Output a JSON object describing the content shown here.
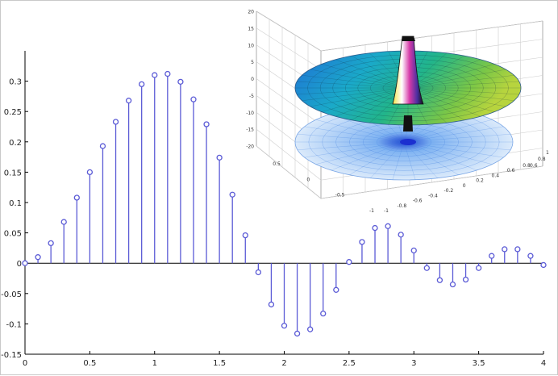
{
  "chart_data": [
    {
      "type": "stem",
      "x": [
        0,
        0.1,
        0.2,
        0.3,
        0.4,
        0.5,
        0.6,
        0.7,
        0.8,
        0.9,
        1.0,
        1.1,
        1.2,
        1.3,
        1.4,
        1.5,
        1.6,
        1.7,
        1.8,
        1.9,
        2.0,
        2.1,
        2.2,
        2.3,
        2.4,
        2.5,
        2.6,
        2.7,
        2.8,
        2.9,
        3.0,
        3.1,
        3.2,
        3.3,
        3.4,
        3.5,
        3.6,
        3.7,
        3.8,
        3.9,
        4.0
      ],
      "y": [
        0,
        0.01,
        0.033,
        0.068,
        0.108,
        0.15,
        0.193,
        0.233,
        0.268,
        0.295,
        0.31,
        0.312,
        0.299,
        0.27,
        0.229,
        0.174,
        0.113,
        0.046,
        -0.015,
        -0.068,
        -0.103,
        -0.116,
        -0.109,
        -0.083,
        -0.044,
        0.002,
        0.035,
        0.058,
        0.061,
        0.047,
        0.021,
        -0.008,
        -0.028,
        -0.035,
        -0.027,
        -0.008,
        0.012,
        0.023,
        0.023,
        0.012,
        -0.003
      ],
      "xlim": [
        0,
        4
      ],
      "ylim": [
        -0.15,
        0.35
      ],
      "xticks": [
        "0",
        "0.5",
        "1",
        "1.5",
        "2",
        "2.5",
        "3",
        "3.5",
        "4"
      ],
      "xtick_values": [
        0,
        0.5,
        1,
        1.5,
        2,
        2.5,
        3,
        3.5,
        4
      ],
      "yticks": [
        "-0.15",
        "-0.1",
        "-0.05",
        "0",
        "0.05",
        "0.1",
        "0.15",
        "0.2",
        "0.25",
        "0.3"
      ],
      "ytick_values": [
        -0.15,
        -0.1,
        -0.05,
        0,
        0.05,
        0.1,
        0.15,
        0.2,
        0.25,
        0.3
      ],
      "color": "#5b5bd6",
      "grid": false
    },
    {
      "type": "surface3d",
      "z_ticks": [
        "20",
        "15",
        "10",
        "5",
        "0",
        "-5",
        "-10",
        "-15",
        "-20"
      ],
      "left_axis_ticks": [
        "0.5",
        "0",
        "-0.5",
        "-1"
      ],
      "front_axis_ticks": [
        "-1",
        "-0.8",
        "-0.6",
        "-0.4",
        "-0.2",
        "0",
        "0.2",
        "0.4",
        "0.6",
        "0.8"
      ],
      "right_axis_ticks": [
        "0.6",
        "0.8",
        "1"
      ],
      "colormap": [
        "#1f6fd6",
        "#1aa9c9",
        "#22b58a",
        "#5fc24b",
        "#c7d93b"
      ],
      "contour_color": "#3f7fe0",
      "grid": true
    }
  ]
}
